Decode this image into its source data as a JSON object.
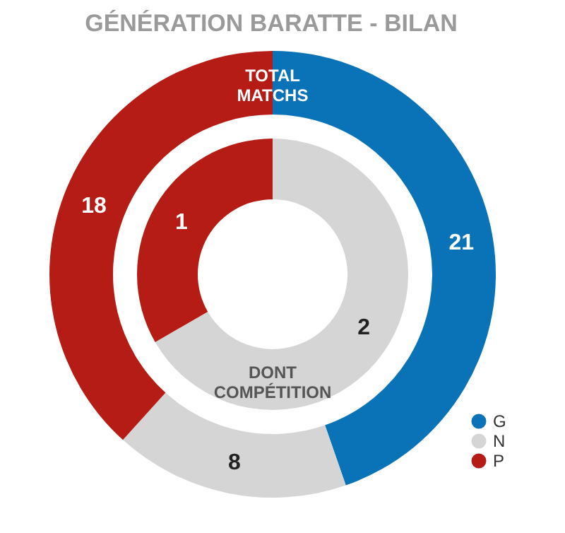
{
  "chart_data": {
    "type": "donut",
    "title": "GÉNÉRATION BARATTE - BILAN",
    "categories": [
      "G",
      "N",
      "P"
    ],
    "colors": [
      "#0a73b7",
      "#d5d5d5",
      "#b61c16"
    ],
    "series": [
      {
        "name": "TOTAL MATCHS",
        "values": [
          21,
          8,
          18
        ]
      },
      {
        "name": "DONT COMPÉTITION",
        "values": [
          null,
          2,
          1
        ]
      }
    ],
    "data_labels": true,
    "legend": "bottom right"
  }
}
